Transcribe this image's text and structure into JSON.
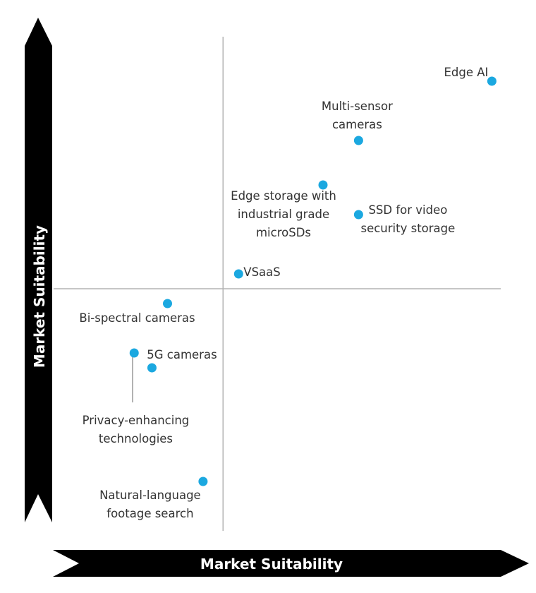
{
  "chart_data": {
    "type": "scatter",
    "xlabel": "Market Suitability",
    "ylabel": "Market Suitability",
    "xlim": [
      0,
      100
    ],
    "ylim": [
      0,
      100
    ],
    "quadrant_lines": {
      "x": 37.5,
      "y": 49
    },
    "point_color": "#1ba8e0",
    "points": [
      {
        "label": "Edge AI",
        "x": 98,
        "y": 91
      },
      {
        "label": "Multi-sensor cameras",
        "x": 68,
        "y": 79
      },
      {
        "label": "Edge storage with industrial grade microSDs",
        "x": 60,
        "y": 70
      },
      {
        "label": "SSD for video security storage",
        "x": 68,
        "y": 64
      },
      {
        "label": "VSaaS",
        "x": 41,
        "y": 52
      },
      {
        "label": "Bi-spectral cameras",
        "x": 25,
        "y": 46
      },
      {
        "label": "5G cameras",
        "x": 17.5,
        "y": 36
      },
      {
        "label": "Privacy-enhancing technologies",
        "x": 21.5,
        "y": 33
      },
      {
        "label": "Natural-language footage search",
        "x": 33,
        "y": 10
      }
    ]
  }
}
